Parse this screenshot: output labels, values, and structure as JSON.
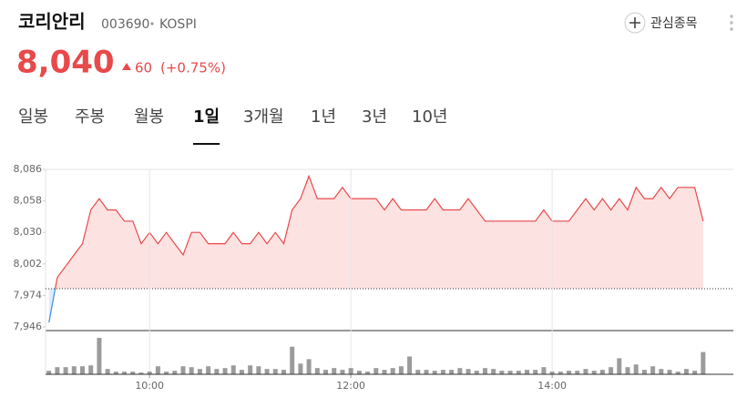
{
  "header": {
    "name": "코리안리",
    "code": "003690",
    "market": "KOSPI",
    "watch_button": "관심종목"
  },
  "price": {
    "current": "8,040",
    "change": "60",
    "change_pct": "(+0.75%)"
  },
  "tabs": {
    "items": [
      "일봉",
      "주봉",
      "월봉",
      "1일",
      "3개월",
      "1년",
      "3년",
      "10년"
    ],
    "active": 3
  },
  "chart_data": [
    {
      "type": "line",
      "x": [
        "09:00",
        "09:05",
        "09:10",
        "09:15",
        "09:20",
        "09:25",
        "09:30",
        "09:35",
        "09:40",
        "09:45",
        "09:50",
        "09:55",
        "10:00",
        "10:05",
        "10:10",
        "10:15",
        "10:20",
        "10:25",
        "10:30",
        "10:35",
        "10:40",
        "10:45",
        "10:50",
        "10:55",
        "11:00",
        "11:05",
        "11:10",
        "11:15",
        "11:20",
        "11:25",
        "11:30",
        "11:35",
        "11:40",
        "11:45",
        "11:50",
        "11:55",
        "12:00",
        "12:05",
        "12:10",
        "12:15",
        "12:20",
        "12:25",
        "12:30",
        "12:35",
        "12:40",
        "12:45",
        "12:50",
        "12:55",
        "13:00",
        "13:05",
        "13:10",
        "13:15",
        "13:20",
        "13:25",
        "13:30",
        "13:35",
        "13:40",
        "13:45",
        "13:50",
        "13:55",
        "14:00",
        "14:05",
        "14:10",
        "14:15",
        "14:20",
        "14:25",
        "14:30",
        "14:35",
        "14:40",
        "14:45",
        "14:50",
        "14:55",
        "15:00",
        "15:05",
        "15:10",
        "15:15",
        "15:20",
        "15:25",
        "15:30"
      ],
      "values": [
        7950,
        7990,
        8000,
        8010,
        8020,
        8050,
        8060,
        8050,
        8050,
        8040,
        8040,
        8020,
        8030,
        8020,
        8030,
        8020,
        8010,
        8030,
        8030,
        8020,
        8020,
        8020,
        8030,
        8020,
        8020,
        8030,
        8020,
        8030,
        8020,
        8050,
        8060,
        8080,
        8060,
        8060,
        8060,
        8070,
        8060,
        8060,
        8060,
        8060,
        8050,
        8060,
        8050,
        8050,
        8050,
        8050,
        8060,
        8050,
        8050,
        8050,
        8060,
        8050,
        8040,
        8040,
        8040,
        8040,
        8040,
        8040,
        8040,
        8050,
        8040,
        8040,
        8040,
        8050,
        8060,
        8050,
        8060,
        8050,
        8060,
        8050,
        8070,
        8060,
        8060,
        8070,
        8060,
        8070,
        8070,
        8070,
        8040
      ],
      "color": "#e8494a",
      "below_color": "#3b8de4",
      "fill": "#fde2e2",
      "below_fill": "#dfecfa",
      "reference_line": 7980,
      "xlim": [
        "08:58",
        "15:48"
      ],
      "ylim": [
        7946,
        8086
      ],
      "yticks": [
        {
          "value": 7946,
          "label": "7,946"
        },
        {
          "value": 7974,
          "label": "7,974"
        },
        {
          "value": 8002,
          "label": "8,002"
        },
        {
          "value": 8030,
          "label": "8,030"
        },
        {
          "value": 8058,
          "label": "8,058"
        },
        {
          "value": 8086,
          "label": "8,086"
        }
      ]
    },
    {
      "type": "bar",
      "x": [
        "09:00",
        "09:05",
        "09:10",
        "09:15",
        "09:20",
        "09:25",
        "09:30",
        "09:35",
        "09:40",
        "09:45",
        "09:50",
        "09:55",
        "10:00",
        "10:05",
        "10:10",
        "10:15",
        "10:20",
        "10:25",
        "10:30",
        "10:35",
        "10:40",
        "10:45",
        "10:50",
        "10:55",
        "11:00",
        "11:05",
        "11:10",
        "11:15",
        "11:20",
        "11:25",
        "11:30",
        "11:35",
        "11:40",
        "11:45",
        "11:50",
        "11:55",
        "12:00",
        "12:05",
        "12:10",
        "12:15",
        "12:20",
        "12:25",
        "12:30",
        "12:35",
        "12:40",
        "12:45",
        "12:50",
        "12:55",
        "13:00",
        "13:05",
        "13:10",
        "13:15",
        "13:20",
        "13:25",
        "13:30",
        "13:35",
        "13:40",
        "13:45",
        "13:50",
        "13:55",
        "14:00",
        "14:05",
        "14:10",
        "14:15",
        "14:20",
        "14:25",
        "14:30",
        "14:35",
        "14:40",
        "14:45",
        "14:50",
        "14:55",
        "15:00",
        "15:05",
        "15:10",
        "15:15",
        "15:20",
        "15:25",
        "15:30"
      ],
      "values": [
        4000,
        8000,
        8000,
        9000,
        9000,
        10000,
        41000,
        6000,
        3000,
        3000,
        3000,
        2000,
        3000,
        9000,
        3000,
        4000,
        9000,
        8000,
        6000,
        9000,
        6000,
        7000,
        10000,
        5000,
        10000,
        9000,
        6000,
        6000,
        5000,
        31000,
        12000,
        17000,
        7000,
        5000,
        7000,
        5000,
        7000,
        4000,
        3000,
        7000,
        5000,
        7000,
        9000,
        20000,
        5000,
        5000,
        4000,
        5000,
        5000,
        7000,
        6000,
        4000,
        7000,
        6000,
        4000,
        4000,
        4000,
        5000,
        5000,
        8000,
        3000,
        3000,
        4000,
        4000,
        6000,
        4000,
        5000,
        8000,
        18000,
        8000,
        11000,
        5000,
        9000,
        6000,
        5000,
        3000,
        6000,
        4000,
        25000
      ],
      "color": "#9b9b9b",
      "xlim": [
        "08:58",
        "15:48"
      ],
      "ylim": [
        0,
        45000
      ],
      "xticks": [
        "10:00",
        "12:00",
        "14:00"
      ],
      "grid": true
    }
  ]
}
